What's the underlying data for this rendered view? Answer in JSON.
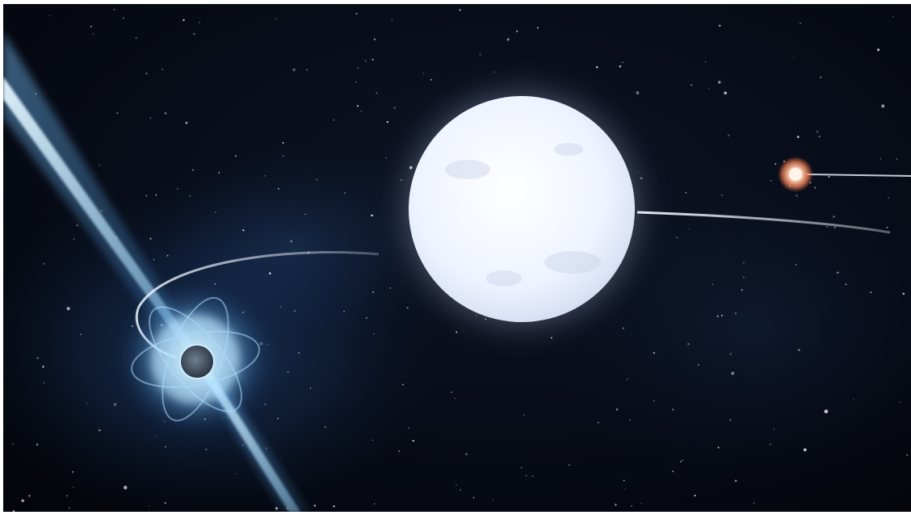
{
  "scene": {
    "type": "artist-illustration",
    "objects": [
      {
        "kind": "pulsar",
        "icon": "pulsar-icon"
      },
      {
        "kind": "white-dwarf",
        "icon": "white-dwarf-icon"
      },
      {
        "kind": "outer-star",
        "icon": "small-star-icon"
      }
    ],
    "colors": {
      "background": "#05070f",
      "nebula": "#1c3a66",
      "pulsar_glow": "#9ad8ff",
      "pulsar_beam": "#cfefff",
      "white_dwarf": "#f2f6ff",
      "outer_star": "#ffb08a",
      "orbit_line": "#e6eefc"
    }
  }
}
